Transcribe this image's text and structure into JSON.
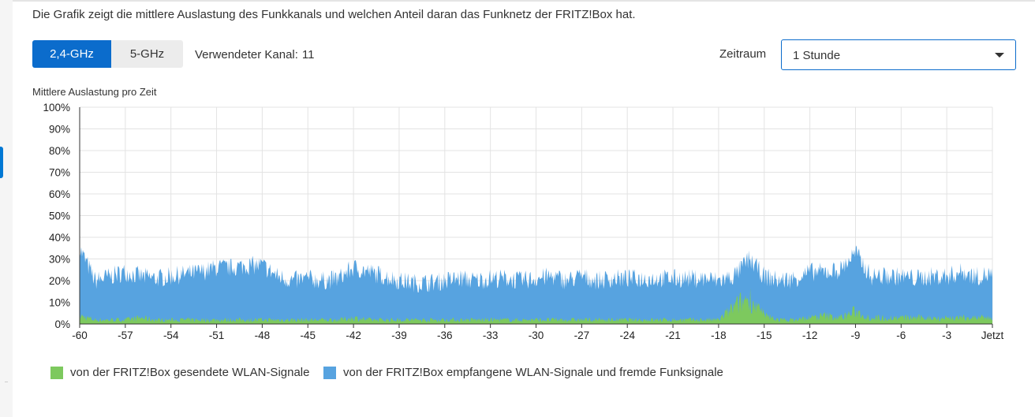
{
  "description": "Die Grafik zeigt die mittlere Auslastung des Funkkanals und welchen Anteil daran das Funknetz der FRITZ!Box hat.",
  "bands": [
    {
      "label": "2,4-GHz",
      "active": true
    },
    {
      "label": "5-GHz",
      "active": false
    }
  ],
  "channel": {
    "label": "Verwendeter Kanal:",
    "value": "11"
  },
  "timeframe": {
    "label": "Zeitraum",
    "selected": "1 Stunde"
  },
  "colors": {
    "sent": "#7dc95e",
    "received": "#57a3e0",
    "accent": "#0b6ccc"
  },
  "chart_data": {
    "type": "area",
    "title": "Mittlere Auslastung pro Zeit",
    "xlabel": "",
    "ylabel": "",
    "xlim": [
      -60,
      0
    ],
    "ylim": [
      0,
      100
    ],
    "x_ticks": [
      -60,
      -57,
      -54,
      -51,
      -48,
      -45,
      -42,
      -39,
      -36,
      -33,
      -30,
      -27,
      -24,
      -21,
      -18,
      -15,
      -12,
      -9,
      -6,
      -3,
      0
    ],
    "x_tick_labels": [
      "-60",
      "-57",
      "-54",
      "-51",
      "-48",
      "-45",
      "-42",
      "-39",
      "-36",
      "-33",
      "-30",
      "-27",
      "-24",
      "-21",
      "-18",
      "-15",
      "-12",
      "-9",
      "-6",
      "-3",
      "Jetzt"
    ],
    "y_ticks": [
      0,
      10,
      20,
      30,
      40,
      50,
      60,
      70,
      80,
      90,
      100
    ],
    "y_tick_labels": [
      "0%",
      "10%",
      "20%",
      "30%",
      "40%",
      "50%",
      "60%",
      "70%",
      "80%",
      "90%",
      "100%"
    ],
    "grid": true,
    "legend_position": "bottom",
    "x": [
      -60,
      -59,
      -58,
      -57,
      -56,
      -55,
      -54,
      -53,
      -52,
      -51,
      -50,
      -49,
      -48,
      -47,
      -46,
      -45,
      -44,
      -43,
      -42,
      -41,
      -40,
      -39,
      -38,
      -37,
      -36,
      -35,
      -34,
      -33,
      -32,
      -31,
      -30,
      -29,
      -28,
      -27,
      -26,
      -25,
      -24,
      -23,
      -22,
      -21,
      -20,
      -19,
      -18,
      -17,
      -16,
      -15,
      -14,
      -13,
      -12,
      -11,
      -10,
      -9,
      -8,
      -7,
      -6,
      -5,
      -4,
      -3,
      -2,
      -1,
      0
    ],
    "series": [
      {
        "name": "von der FRITZ!Box gesendete WLAN-Signale",
        "color": "#7dc95e",
        "values": [
          4,
          2,
          2,
          2,
          3,
          2,
          2,
          2,
          2,
          2,
          2,
          2,
          2,
          2,
          2,
          2,
          2,
          2,
          3,
          2,
          2,
          2,
          2,
          2,
          2,
          2,
          2,
          2,
          2,
          2,
          2,
          2,
          2,
          2,
          2,
          2,
          2,
          2,
          2,
          2,
          2,
          2,
          2,
          8,
          13,
          4,
          2,
          2,
          3,
          4,
          3,
          6,
          3,
          3,
          3,
          3,
          3,
          3,
          3,
          3,
          3
        ]
      },
      {
        "name": "von der FRITZ!Box empfangene WLAN-Signale und fremde Funksignale",
        "color": "#57a3e0",
        "values": [
          35,
          20,
          22,
          24,
          22,
          21,
          22,
          23,
          24,
          26,
          26,
          27,
          27,
          22,
          20,
          21,
          20,
          21,
          26,
          24,
          22,
          20,
          19,
          19,
          20,
          21,
          20,
          21,
          21,
          20,
          21,
          22,
          20,
          22,
          20,
          21,
          21,
          21,
          21,
          21,
          21,
          21,
          20,
          22,
          30,
          22,
          20,
          21,
          24,
          24,
          25,
          33,
          22,
          22,
          22,
          21,
          22,
          22,
          24,
          22,
          23
        ]
      }
    ]
  }
}
